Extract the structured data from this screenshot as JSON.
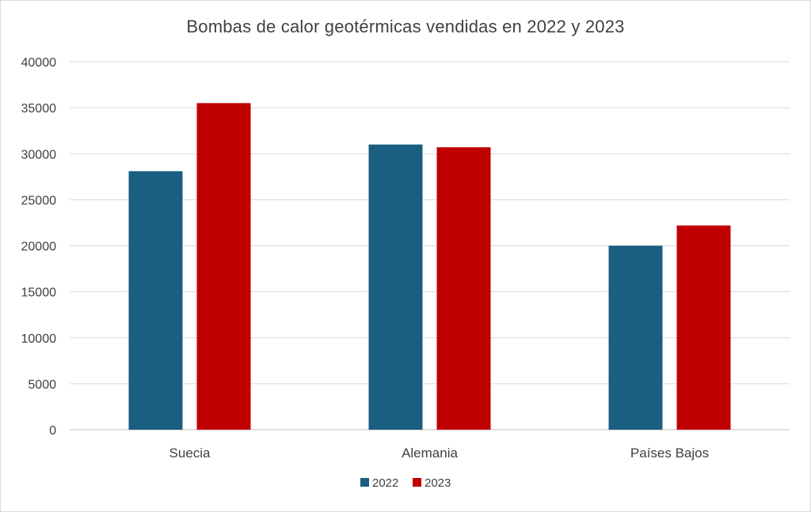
{
  "chart_data": {
    "type": "bar",
    "title": "Bombas de calor geotérmicas vendidas en 2022 y 2023",
    "categories": [
      "Suecia",
      "Alemania",
      "Países Bajos"
    ],
    "series": [
      {
        "name": "2022",
        "color": "#1a5e80",
        "values": [
          28100,
          31000,
          20000
        ]
      },
      {
        "name": "2023",
        "color": "#c00000",
        "values": [
          35500,
          30700,
          22200
        ]
      }
    ],
    "ylim": [
      0,
      40000
    ],
    "yticks": [
      "0",
      "5000",
      "10000",
      "15000",
      "20000",
      "25000",
      "30000",
      "35000",
      "40000"
    ],
    "grid": true,
    "legend_position": "bottom",
    "xlabel": "",
    "ylabel": ""
  }
}
